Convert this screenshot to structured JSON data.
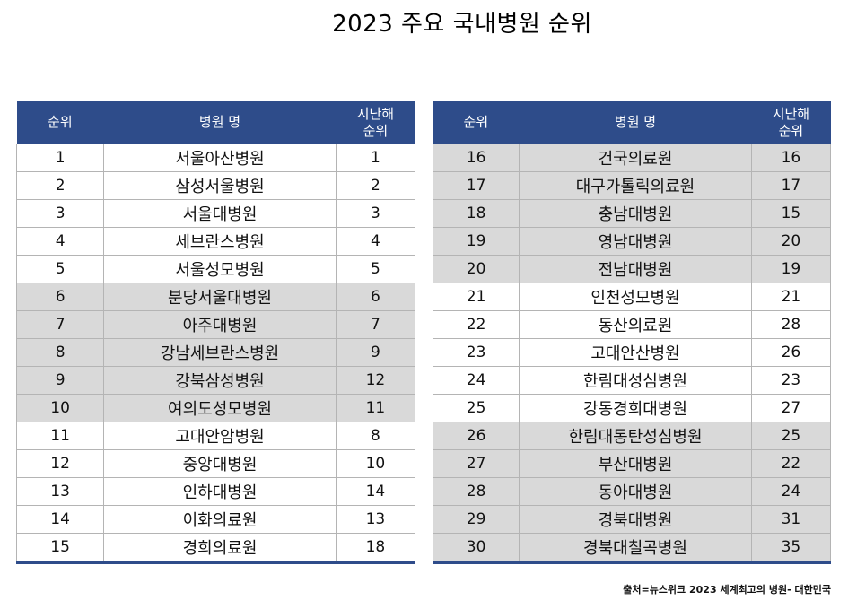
{
  "title": "2023 주요 국내병원 순위",
  "headers": {
    "rank": "순위",
    "name": "병원 명",
    "prev_line1": "지난해",
    "prev_line2": "순위"
  },
  "left_rows": [
    {
      "rank": "1",
      "name": "서울아산병원",
      "prev": "1",
      "shaded": false
    },
    {
      "rank": "2",
      "name": "삼성서울병원",
      "prev": "2",
      "shaded": false
    },
    {
      "rank": "3",
      "name": "서울대병원",
      "prev": "3",
      "shaded": false
    },
    {
      "rank": "4",
      "name": "세브란스병원",
      "prev": "4",
      "shaded": false
    },
    {
      "rank": "5",
      "name": "서울성모병원",
      "prev": "5",
      "shaded": false
    },
    {
      "rank": "6",
      "name": "분당서울대병원",
      "prev": "6",
      "shaded": true
    },
    {
      "rank": "7",
      "name": "아주대병원",
      "prev": "7",
      "shaded": true
    },
    {
      "rank": "8",
      "name": "강남세브란스병원",
      "prev": "9",
      "shaded": true
    },
    {
      "rank": "9",
      "name": "강북삼성병원",
      "prev": "12",
      "shaded": true
    },
    {
      "rank": "10",
      "name": "여의도성모병원",
      "prev": "11",
      "shaded": true
    },
    {
      "rank": "11",
      "name": "고대안암병원",
      "prev": "8",
      "shaded": false
    },
    {
      "rank": "12",
      "name": "중앙대병원",
      "prev": "10",
      "shaded": false
    },
    {
      "rank": "13",
      "name": "인하대병원",
      "prev": "14",
      "shaded": false
    },
    {
      "rank": "14",
      "name": "이화의료원",
      "prev": "13",
      "shaded": false
    },
    {
      "rank": "15",
      "name": "경희의료원",
      "prev": "18",
      "shaded": false
    }
  ],
  "right_rows": [
    {
      "rank": "16",
      "name": "건국의료원",
      "prev": "16",
      "shaded": true
    },
    {
      "rank": "17",
      "name": "대구가톨릭의료원",
      "prev": "17",
      "shaded": true
    },
    {
      "rank": "18",
      "name": "충남대병원",
      "prev": "15",
      "shaded": true
    },
    {
      "rank": "19",
      "name": "영남대병원",
      "prev": "20",
      "shaded": true
    },
    {
      "rank": "20",
      "name": "전남대병원",
      "prev": "19",
      "shaded": true
    },
    {
      "rank": "21",
      "name": "인천성모병원",
      "prev": "21",
      "shaded": false
    },
    {
      "rank": "22",
      "name": "동산의료원",
      "prev": "28",
      "shaded": false
    },
    {
      "rank": "23",
      "name": "고대안산병원",
      "prev": "26",
      "shaded": false
    },
    {
      "rank": "24",
      "name": "한림대성심병원",
      "prev": "23",
      "shaded": false
    },
    {
      "rank": "25",
      "name": "강동경희대병원",
      "prev": "27",
      "shaded": false
    },
    {
      "rank": "26",
      "name": "한림대동탄성심병원",
      "prev": "25",
      "shaded": true
    },
    {
      "rank": "27",
      "name": "부산대병원",
      "prev": "22",
      "shaded": true
    },
    {
      "rank": "28",
      "name": "동아대병원",
      "prev": "24",
      "shaded": true
    },
    {
      "rank": "29",
      "name": "경북대병원",
      "prev": "31",
      "shaded": true
    },
    {
      "rank": "30",
      "name": "경북대칠곡병원",
      "prev": "35",
      "shaded": true
    }
  ],
  "source": "출처=뉴스위크  2023 세계최고의 병원- 대한민국",
  "colors": {
    "header_bg": "#2e4c8a",
    "shaded_row": "#d9d9d9",
    "plain_row": "#ffffff"
  }
}
